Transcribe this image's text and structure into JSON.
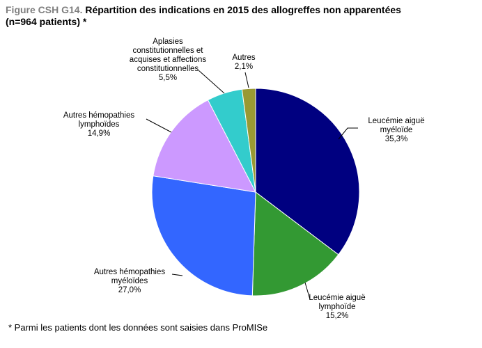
{
  "title": {
    "figure_ref": "Figure CSH G14.",
    "text_line1": "Répartition des indications en 2015 des allogreffes non apparentées",
    "text_line2": "(n=964 patients) *"
  },
  "footnote": "* Parmi les patients  dont les données sont saisies dans ProMISe",
  "chart_data": {
    "type": "pie",
    "start_angle_deg": 0,
    "direction": "clockwise",
    "slices": [
      {
        "label_lines": [
          "Leucémie aiguë",
          "myéloïde"
        ],
        "value": 35.3,
        "value_label": "35,3%",
        "color": "#000080"
      },
      {
        "label_lines": [
          "Leucémie aiguë",
          "lymphoïde"
        ],
        "value": 15.2,
        "value_label": "15,2%",
        "color": "#339933"
      },
      {
        "label_lines": [
          "Autres hémopathies",
          "myéloïdes"
        ],
        "value": 27.0,
        "value_label": "27,0%",
        "color": "#3366FF"
      },
      {
        "label_lines": [
          "Autres hémopathies",
          "lymphoïdes"
        ],
        "value": 14.9,
        "value_label": "14,9%",
        "color": "#CC99FF"
      },
      {
        "label_lines": [
          "Aplasies",
          "constitutionnelles et",
          "acquises et affections",
          "constitutionnelles"
        ],
        "value": 5.5,
        "value_label": "5,5%",
        "color": "#33CCCC"
      },
      {
        "label_lines": [
          "Autres"
        ],
        "value": 2.1,
        "value_label": "2,1%",
        "color": "#999933"
      }
    ]
  }
}
